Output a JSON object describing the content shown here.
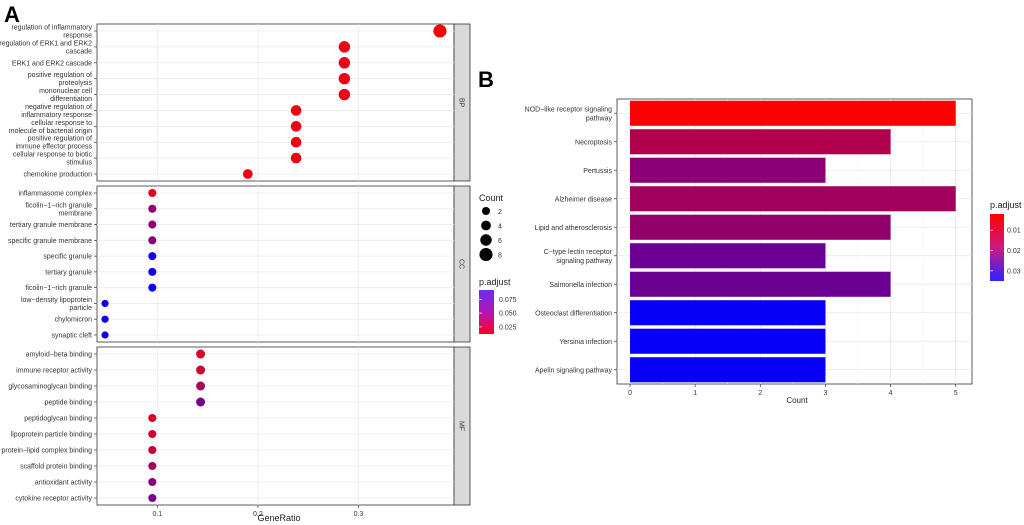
{
  "panel_a": {
    "letter": "A",
    "chart_data": {
      "type": "scatter",
      "xlabel": "GeneRatio",
      "xlim": [
        0.04,
        0.395
      ],
      "xticks": [
        "0.1",
        "0.2",
        "0.3"
      ],
      "xtick_values": [
        0.1,
        0.2,
        0.3
      ],
      "facets": [
        {
          "name": "BP",
          "terms": [
            {
              "label": [
                "regulation of inflammatory",
                "response"
              ],
              "x": 0.381,
              "count": 8,
              "p_adjust": 0.014
            },
            {
              "label": [
                "regulation of ERK1 and ERK2",
                "cascade"
              ],
              "x": 0.286,
              "count": 6,
              "p_adjust": 0.018
            },
            {
              "label": [
                "ERK1 and ERK2 cascade"
              ],
              "x": 0.286,
              "count": 6,
              "p_adjust": 0.018
            },
            {
              "label": [
                "positive regulation of",
                "proteolysis"
              ],
              "x": 0.286,
              "count": 6,
              "p_adjust": 0.018
            },
            {
              "label": [
                "mononuclear cell",
                "differentiation"
              ],
              "x": 0.286,
              "count": 6,
              "p_adjust": 0.018
            },
            {
              "label": [
                "negative regulation of",
                "inflammatory response"
              ],
              "x": 0.238,
              "count": 5,
              "p_adjust": 0.018
            },
            {
              "label": [
                "cellular response to",
                "molecule of bacterial origin"
              ],
              "x": 0.238,
              "count": 5,
              "p_adjust": 0.018
            },
            {
              "label": [
                "positive regulation of",
                "immune effector process"
              ],
              "x": 0.238,
              "count": 5,
              "p_adjust": 0.018
            },
            {
              "label": [
                "cellular response to biotic",
                "stimulus"
              ],
              "x": 0.238,
              "count": 5,
              "p_adjust": 0.018
            },
            {
              "label": [
                "chemokine production"
              ],
              "x": 0.19,
              "count": 4,
              "p_adjust": 0.018
            }
          ]
        },
        {
          "name": "CC",
          "terms": [
            {
              "label": [
                "inflammasome complex"
              ],
              "x": 0.095,
              "count": 2,
              "p_adjust": 0.022
            },
            {
              "label": [
                "ficolin−1−rich granule",
                "membrane"
              ],
              "x": 0.095,
              "count": 2,
              "p_adjust": 0.045
            },
            {
              "label": [
                "tertiary granule membrane"
              ],
              "x": 0.095,
              "count": 2,
              "p_adjust": 0.045
            },
            {
              "label": [
                "specific granule membrane"
              ],
              "x": 0.095,
              "count": 2,
              "p_adjust": 0.05
            },
            {
              "label": [
                "specific granule"
              ],
              "x": 0.095,
              "count": 2,
              "p_adjust": 0.088
            },
            {
              "label": [
                "tertiary granule"
              ],
              "x": 0.095,
              "count": 2,
              "p_adjust": 0.088
            },
            {
              "label": [
                "ficolin−1−rich granule"
              ],
              "x": 0.095,
              "count": 2,
              "p_adjust": 0.088
            },
            {
              "label": [
                "low−density lipoprotein",
                "particle"
              ],
              "x": 0.048,
              "count": 1,
              "p_adjust": 0.088
            },
            {
              "label": [
                "chylomicron"
              ],
              "x": 0.048,
              "count": 1,
              "p_adjust": 0.088
            },
            {
              "label": [
                "synaptic cleft"
              ],
              "x": 0.048,
              "count": 1,
              "p_adjust": 0.088
            }
          ]
        },
        {
          "name": "MF",
          "terms": [
            {
              "label": [
                "amyloid−beta binding"
              ],
              "x": 0.143,
              "count": 3,
              "p_adjust": 0.025
            },
            {
              "label": [
                "immune receptor activity"
              ],
              "x": 0.143,
              "count": 3,
              "p_adjust": 0.028
            },
            {
              "label": [
                "glycosaminoglycan binding"
              ],
              "x": 0.143,
              "count": 3,
              "p_adjust": 0.04
            },
            {
              "label": [
                "peptide binding"
              ],
              "x": 0.143,
              "count": 3,
              "p_adjust": 0.055
            },
            {
              "label": [
                "peptidoglycan binding"
              ],
              "x": 0.095,
              "count": 2,
              "p_adjust": 0.025
            },
            {
              "label": [
                "lipoprotein particle binding"
              ],
              "x": 0.095,
              "count": 2,
              "p_adjust": 0.028
            },
            {
              "label": [
                "protein−lipid complex binding"
              ],
              "x": 0.095,
              "count": 2,
              "p_adjust": 0.03
            },
            {
              "label": [
                "scaffold protein binding"
              ],
              "x": 0.095,
              "count": 2,
              "p_adjust": 0.04
            },
            {
              "label": [
                "antioxidant activity"
              ],
              "x": 0.095,
              "count": 2,
              "p_adjust": 0.05
            },
            {
              "label": [
                "cytokine receptor activity"
              ],
              "x": 0.095,
              "count": 2,
              "p_adjust": 0.055
            }
          ]
        }
      ],
      "legend_count": {
        "title": "Count",
        "values": [
          2,
          4,
          6,
          8
        ]
      },
      "legend_color": {
        "title": "p.adjust",
        "values": [
          "0.075",
          "0.050",
          "0.025"
        ],
        "value_numbers": [
          0.075,
          0.05,
          0.025
        ],
        "range": [
          0.012,
          0.092
        ],
        "low_color": "#ff0000",
        "high_color": "#0000ff"
      }
    }
  },
  "panel_b": {
    "letter": "B",
    "chart_data": {
      "type": "bar",
      "orientation": "horizontal",
      "xlabel": "Count",
      "xlim": [
        -0.2,
        5.25
      ],
      "xticks": [
        "0",
        "1",
        "2",
        "3",
        "4",
        "5"
      ],
      "xtick_values": [
        0,
        1,
        2,
        3,
        4,
        5
      ],
      "categories": [
        [
          "NOD−like receptor signaling",
          "pathway"
        ],
        [
          "Necroptosis"
        ],
        [
          "Pertussis"
        ],
        [
          "Alzheimer disease"
        ],
        [
          "Lipid and atherosclerosis"
        ],
        [
          "C−type lectin receptor",
          "signaling pathway"
        ],
        [
          "Salmonella infection"
        ],
        [
          "Osteoclast differentiation"
        ],
        [
          "Yersinia infection"
        ],
        [
          "Apelin signaling pathway"
        ]
      ],
      "values": [
        5,
        4,
        3,
        5,
        4,
        3,
        4,
        3,
        3,
        3
      ],
      "p_adjust": [
        0.002,
        0.012,
        0.017,
        0.014,
        0.016,
        0.021,
        0.021,
        0.034,
        0.034,
        0.034
      ],
      "legend_color": {
        "title": "p.adjust",
        "values": [
          "0.01",
          "0.02",
          "0.03"
        ],
        "value_numbers": [
          0.01,
          0.02,
          0.03
        ],
        "range": [
          0.002,
          0.035
        ],
        "low_color": "#ff0000",
        "high_color": "#0000ff"
      }
    }
  }
}
